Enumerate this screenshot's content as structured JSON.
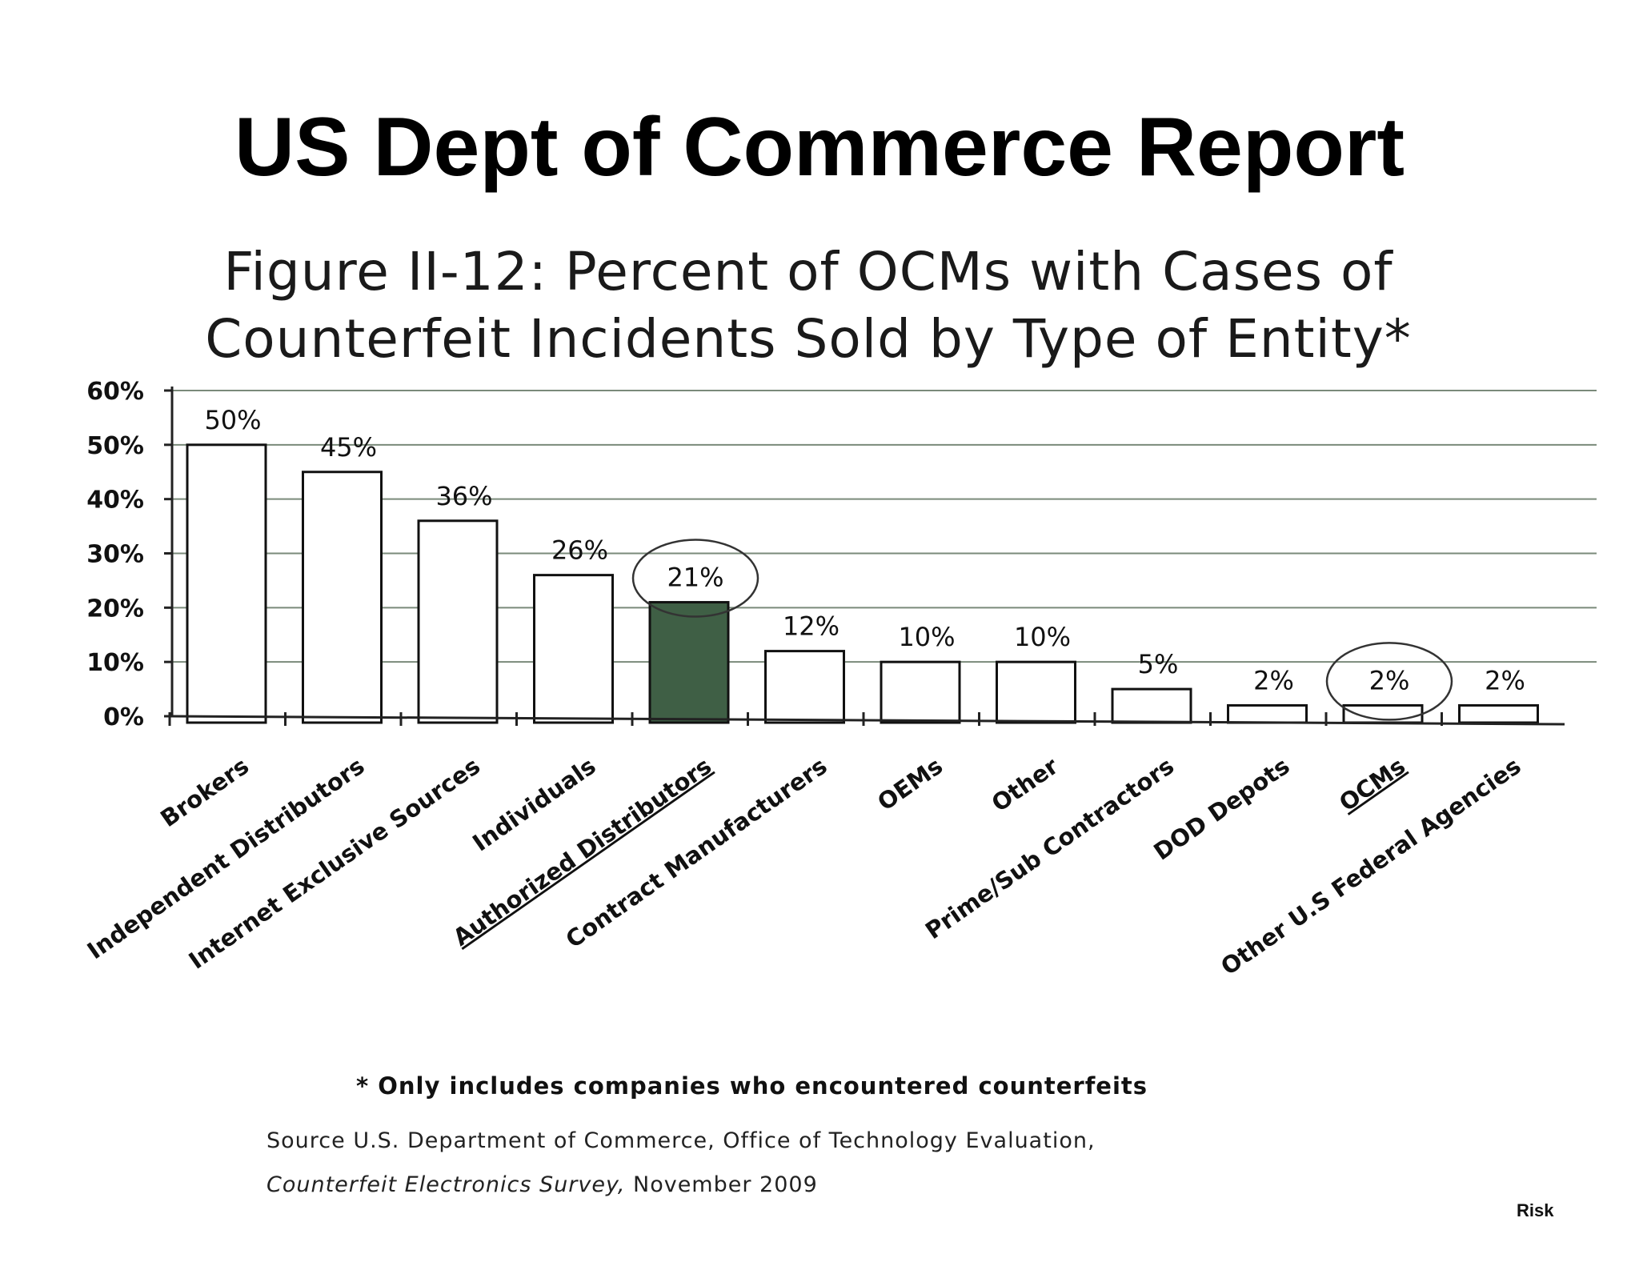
{
  "slide": {
    "title": "US Dept of Commerce Report",
    "corner_label": "Risk"
  },
  "chart_data": {
    "type": "bar",
    "title_line1": "Figure II-12: Percent of OCMs with Cases of",
    "title_line2": "Counterfeit Incidents Sold by Type of Entity*",
    "categories": [
      "Brokers",
      "Independent Distributors",
      "Internet Exclusive Sources",
      "Individuals",
      "Authorized Distributors",
      "Contract Manufacturers",
      "OEMs",
      "Other",
      "Prime/Sub Contractors",
      "DOD Depots",
      "OCMs",
      "Other U.S Federal Agencies"
    ],
    "values": [
      50,
      45,
      36,
      26,
      21,
      12,
      10,
      10,
      5,
      2,
      2,
      2
    ],
    "value_labels": [
      "50%",
      "45%",
      "36%",
      "26%",
      "21%",
      "12%",
      "10%",
      "10%",
      "5%",
      "2%",
      "2%",
      "2%"
    ],
    "y_ticks": [
      "0%",
      "10%",
      "20%",
      "30%",
      "40%",
      "50%",
      "60%"
    ],
    "ylim": [
      0,
      60
    ],
    "grid": true,
    "highlighted": [
      "Authorized Distributors",
      "OCMs"
    ],
    "bar_color": "#ffffff",
    "highlight_bar_color": "#3f5f45",
    "grid_color": "#7a8a7a",
    "footnote": "* Only includes companies who encountered counterfeits",
    "source_line1": "Source  U.S. Department of Commerce, Office of Technology Evaluation,",
    "source_line2_italic": "Counterfeit Electronics Survey,",
    "source_line2_plain": " November 2009"
  }
}
